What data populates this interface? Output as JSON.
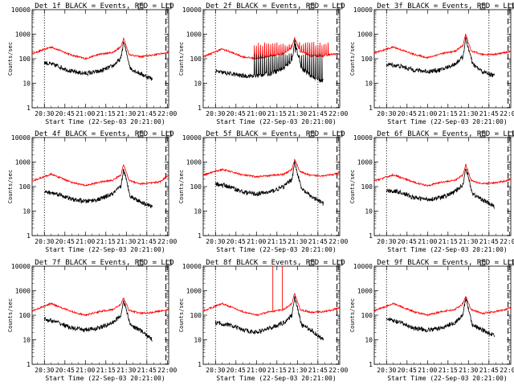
{
  "figure": {
    "ylabel": "Counts/sec",
    "xlabel": "Start Time (22-Sep-03 20:21:00)",
    "legend_title_suffix": "BLACK = Events, RED = LLD",
    "colors": {
      "events": "#000000",
      "lld": "#ff0000",
      "markers": "#000000"
    }
  },
  "chart_data": [
    {
      "type": "line",
      "detector": "Det 1f",
      "title": "Det 1f BLACK = Events, RED = LLD",
      "xlabel": "Start Time (22-Sep-03 20:21:00)",
      "ylabel": "Counts/sec",
      "yscale": "log",
      "ylim": [
        1,
        10000
      ],
      "xlim": [
        "20:21",
        "22:01"
      ],
      "xticks": [
        "20:30",
        "20:45",
        "21:00",
        "21:15",
        "21:30",
        "21:45",
        "22:00"
      ],
      "yticks": [
        "1",
        "10",
        "100",
        "1000",
        "10000"
      ],
      "vlines_dotted": [
        "20:30",
        "21:45"
      ],
      "vline_dashed": "21:59",
      "series": [
        {
          "name": "LLD",
          "x": [
            "20:21",
            "20:35",
            "20:50",
            "21:00",
            "21:10",
            "21:20",
            "21:26",
            "21:28",
            "21:32",
            "21:40",
            "21:49",
            "21:55",
            "22:01"
          ],
          "values": [
            160,
            300,
            140,
            100,
            150,
            180,
            300,
            700,
            150,
            120,
            140,
            160,
            180
          ]
        },
        {
          "name": "Events",
          "x": [
            "20:30",
            "20:40",
            "20:50",
            "21:00",
            "21:10",
            "21:20",
            "21:26",
            "21:28",
            "21:33",
            "21:40",
            "21:49"
          ],
          "values": [
            70,
            50,
            30,
            25,
            30,
            50,
            100,
            500,
            40,
            25,
            15
          ]
        }
      ]
    },
    {
      "type": "line",
      "detector": "Det 2f",
      "title": "Det 2f BLACK = Events, RED = LLD",
      "xlabel": "Start Time (22-Sep-03 20:21:00)",
      "ylabel": "Counts/sec",
      "yscale": "log",
      "ylim": [
        1,
        10000
      ],
      "xlim": [
        "20:21",
        "22:01"
      ],
      "xticks": [
        "20:30",
        "20:45",
        "21:00",
        "21:15",
        "21:30",
        "21:45",
        "22:00"
      ],
      "yticks": [
        "1",
        "10",
        "100",
        "1000",
        "10000"
      ],
      "vlines_dotted": [
        "20:30",
        "21:45"
      ],
      "vline_dashed": "21:59",
      "series": [
        {
          "name": "LLD",
          "x": [
            "20:21",
            "20:35",
            "20:50",
            "21:00",
            "21:10",
            "21:20",
            "21:26",
            "21:28",
            "21:32",
            "21:40",
            "21:49",
            "21:55",
            "22:01"
          ],
          "values": [
            120,
            250,
            120,
            100,
            130,
            160,
            300,
            700,
            200,
            130,
            130,
            150,
            160
          ],
          "spikes_to": 400
        },
        {
          "name": "Events",
          "x": [
            "20:30",
            "20:40",
            "20:50",
            "21:00",
            "21:10",
            "21:20",
            "21:26",
            "21:28",
            "21:33",
            "21:40",
            "21:49"
          ],
          "values": [
            30,
            25,
            20,
            20,
            25,
            40,
            90,
            500,
            40,
            20,
            12
          ],
          "spikes_to": 150
        }
      ]
    },
    {
      "type": "line",
      "detector": "Det 3f",
      "title": "Det 3f BLACK = Events, RED = LLD",
      "xlabel": "Start Time (22-Sep-03 20:21:00)",
      "ylabel": "Counts/sec",
      "yscale": "log",
      "ylim": [
        1,
        10000
      ],
      "xlim": [
        "20:21",
        "22:01"
      ],
      "xticks": [
        "20:30",
        "20:45",
        "21:00",
        "21:15",
        "21:30",
        "21:45",
        "22:00"
      ],
      "yticks": [
        "1",
        "10",
        "100",
        "1000",
        "10000"
      ],
      "vlines_dotted": [
        "20:30",
        "21:45"
      ],
      "vline_dashed": "21:59",
      "series": [
        {
          "name": "LLD",
          "x": [
            "20:21",
            "20:35",
            "20:50",
            "21:00",
            "21:10",
            "21:20",
            "21:26",
            "21:28",
            "21:32",
            "21:40",
            "21:49",
            "21:55",
            "22:01"
          ],
          "values": [
            170,
            300,
            150,
            110,
            160,
            200,
            350,
            1000,
            200,
            150,
            150,
            170,
            200
          ]
        },
        {
          "name": "Events",
          "x": [
            "20:30",
            "20:40",
            "20:50",
            "21:00",
            "21:10",
            "21:20",
            "21:26",
            "21:28",
            "21:33",
            "21:40",
            "21:49"
          ],
          "values": [
            60,
            50,
            35,
            30,
            35,
            60,
            120,
            700,
            60,
            30,
            20
          ]
        }
      ]
    },
    {
      "type": "line",
      "detector": "Det 4f",
      "title": "Det 4f BLACK = Events, RED = LLD",
      "xlabel": "Start Time (22-Sep-03 20:21:00)",
      "ylabel": "Counts/sec",
      "yscale": "log",
      "ylim": [
        1,
        10000
      ],
      "xlim": [
        "20:21",
        "22:01"
      ],
      "xticks": [
        "20:30",
        "20:45",
        "21:00",
        "21:15",
        "21:30",
        "21:45",
        "22:00"
      ],
      "yticks": [
        "1",
        "10",
        "100",
        "1000",
        "10000"
      ],
      "vlines_dotted": [
        "20:30",
        "21:45"
      ],
      "vline_dashed": "21:59",
      "series": [
        {
          "name": "LLD",
          "x": [
            "20:21",
            "20:35",
            "20:50",
            "21:00",
            "21:10",
            "21:20",
            "21:26",
            "21:28",
            "21:32",
            "21:40",
            "21:49",
            "21:55",
            "22:01"
          ],
          "values": [
            170,
            320,
            150,
            110,
            150,
            180,
            300,
            800,
            180,
            130,
            140,
            160,
            300
          ]
        },
        {
          "name": "Events",
          "x": [
            "20:30",
            "20:40",
            "20:50",
            "21:00",
            "21:10",
            "21:20",
            "21:26",
            "21:28",
            "21:33",
            "21:40",
            "21:49"
          ],
          "values": [
            60,
            50,
            30,
            25,
            30,
            50,
            100,
            500,
            40,
            25,
            15
          ]
        }
      ]
    },
    {
      "type": "line",
      "detector": "Det 5f",
      "title": "Det 5f BLACK = Events, RED = LLD",
      "xlabel": "Start Time (22-Sep-03 20:21:00)",
      "ylabel": "Counts/sec",
      "yscale": "log",
      "ylim": [
        1,
        10000
      ],
      "xlim": [
        "20:21",
        "22:01"
      ],
      "xticks": [
        "20:30",
        "20:45",
        "21:00",
        "21:15",
        "21:30",
        "21:45",
        "22:00"
      ],
      "yticks": [
        "1",
        "10",
        "100",
        "1000",
        "10000"
      ],
      "vlines_dotted": [
        "20:30",
        "21:45"
      ],
      "vline_dashed": "21:59",
      "series": [
        {
          "name": "LLD",
          "x": [
            "20:21",
            "20:35",
            "20:50",
            "21:00",
            "21:10",
            "21:20",
            "21:26",
            "21:28",
            "21:32",
            "21:40",
            "21:49",
            "21:55",
            "22:01"
          ],
          "values": [
            300,
            500,
            300,
            250,
            280,
            320,
            500,
            1300,
            400,
            280,
            280,
            300,
            350
          ]
        },
        {
          "name": "Events",
          "x": [
            "20:30",
            "20:40",
            "20:50",
            "21:00",
            "21:10",
            "21:20",
            "21:26",
            "21:28",
            "21:33",
            "21:40",
            "21:49"
          ],
          "values": [
            130,
            100,
            60,
            50,
            60,
            100,
            200,
            1000,
            80,
            40,
            20
          ]
        }
      ]
    },
    {
      "type": "line",
      "detector": "Det 6f",
      "title": "Det 6f BLACK = Events, RED = LLD",
      "xlabel": "Start Time (22-Sep-03 20:21:00)",
      "ylabel": "Counts/sec",
      "yscale": "log",
      "ylim": [
        1,
        10000
      ],
      "xlim": [
        "20:21",
        "22:01"
      ],
      "xticks": [
        "20:30",
        "20:45",
        "21:00",
        "21:15",
        "21:30",
        "21:45",
        "22:00"
      ],
      "yticks": [
        "1",
        "10",
        "100",
        "1000",
        "10000"
      ],
      "vlines_dotted": [
        "20:30",
        "21:45"
      ],
      "vline_dashed": "21:59",
      "series": [
        {
          "name": "LLD",
          "x": [
            "20:21",
            "20:35",
            "20:50",
            "21:00",
            "21:10",
            "21:20",
            "21:26",
            "21:28",
            "21:32",
            "21:40",
            "21:49",
            "21:55",
            "22:01"
          ],
          "values": [
            170,
            300,
            150,
            110,
            150,
            180,
            300,
            800,
            180,
            130,
            140,
            160,
            200
          ]
        },
        {
          "name": "Events",
          "x": [
            "20:30",
            "20:40",
            "20:50",
            "21:00",
            "21:10",
            "21:20",
            "21:26",
            "21:28",
            "21:33",
            "21:40",
            "21:49"
          ],
          "values": [
            70,
            60,
            35,
            30,
            35,
            60,
            120,
            600,
            50,
            30,
            15
          ]
        }
      ]
    },
    {
      "type": "line",
      "detector": "Det 7f",
      "title": "Det 7f BLACK = Events, RED = LLD",
      "xlabel": "Start Time (22-Sep-03 20:21:00)",
      "ylabel": "Counts/sec",
      "yscale": "log",
      "ylim": [
        1,
        10000
      ],
      "xlim": [
        "20:21",
        "22:01"
      ],
      "xticks": [
        "20:30",
        "20:45",
        "21:00",
        "21:15",
        "21:30",
        "21:45",
        "22:00"
      ],
      "yticks": [
        "1",
        "10",
        "100",
        "1000",
        "10000"
      ],
      "vlines_dotted": [
        "20:30",
        "21:45"
      ],
      "vline_dashed": "21:59",
      "series": [
        {
          "name": "LLD",
          "x": [
            "20:21",
            "20:35",
            "20:50",
            "21:00",
            "21:10",
            "21:20",
            "21:26",
            "21:28",
            "21:32",
            "21:40",
            "21:49",
            "21:55",
            "22:01"
          ],
          "values": [
            150,
            300,
            140,
            100,
            140,
            170,
            280,
            500,
            160,
            120,
            130,
            150,
            170
          ]
        },
        {
          "name": "Events",
          "x": [
            "20:30",
            "20:40",
            "20:50",
            "21:00",
            "21:10",
            "21:20",
            "21:26",
            "21:28",
            "21:33",
            "21:40",
            "21:49"
          ],
          "values": [
            70,
            50,
            30,
            25,
            30,
            50,
            100,
            400,
            40,
            25,
            10
          ]
        }
      ]
    },
    {
      "type": "line",
      "detector": "Det 8f",
      "title": "Det 8f BLACK = Events, RED = LLD",
      "xlabel": "Start Time (22-Sep-03 20:21:00)",
      "ylabel": "Counts/sec",
      "yscale": "log",
      "ylim": [
        1,
        10000
      ],
      "xlim": [
        "20:21",
        "22:01"
      ],
      "xticks": [
        "20:30",
        "20:45",
        "21:00",
        "21:15",
        "21:30",
        "21:45",
        "22:00"
      ],
      "yticks": [
        "1",
        "10",
        "100",
        "1000",
        "10000"
      ],
      "vlines_dotted": [
        "20:30",
        "21:45"
      ],
      "vline_dashed": "21:59",
      "series": [
        {
          "name": "LLD",
          "x": [
            "20:21",
            "20:35",
            "20:50",
            "21:00",
            "21:10",
            "21:20",
            "21:26",
            "21:28",
            "21:32",
            "21:40",
            "21:49",
            "21:55",
            "22:01"
          ],
          "values": [
            150,
            300,
            140,
            100,
            140,
            170,
            300,
            800,
            170,
            130,
            140,
            160,
            200
          ],
          "spike_events": [
            {
              "x": "21:12",
              "value": 10000
            },
            {
              "x": "21:19",
              "value": 10000
            }
          ]
        },
        {
          "name": "Events",
          "x": [
            "20:30",
            "20:40",
            "20:50",
            "21:00",
            "21:10",
            "21:20",
            "21:26",
            "21:28",
            "21:33",
            "21:40",
            "21:49"
          ],
          "values": [
            50,
            40,
            25,
            20,
            30,
            50,
            100,
            600,
            40,
            25,
            10
          ]
        }
      ]
    },
    {
      "type": "line",
      "detector": "Det 9f",
      "title": "Det 9f BLACK = Events, RED = LLD",
      "xlabel": "Start Time (22-Sep-03 20:21:00)",
      "ylabel": "Counts/sec",
      "yscale": "log",
      "ylim": [
        1,
        10000
      ],
      "xlim": [
        "20:21",
        "22:01"
      ],
      "xticks": [
        "20:30",
        "20:45",
        "21:00",
        "21:15",
        "21:30",
        "21:45",
        "22:00"
      ],
      "yticks": [
        "1",
        "10",
        "100",
        "1000",
        "10000"
      ],
      "vlines_dotted": [
        "20:30",
        "21:45"
      ],
      "vline_dashed": "21:59",
      "series": [
        {
          "name": "LLD",
          "x": [
            "20:21",
            "20:35",
            "20:50",
            "21:00",
            "21:10",
            "21:20",
            "21:26",
            "21:28",
            "21:32",
            "21:40",
            "21:49",
            "21:55",
            "22:01"
          ],
          "values": [
            150,
            300,
            140,
            100,
            140,
            170,
            300,
            600,
            170,
            120,
            140,
            160,
            200
          ]
        },
        {
          "name": "Events",
          "x": [
            "20:30",
            "20:40",
            "20:50",
            "21:00",
            "21:10",
            "21:20",
            "21:26",
            "21:28",
            "21:33",
            "21:40",
            "21:49"
          ],
          "values": [
            70,
            50,
            30,
            25,
            30,
            50,
            100,
            500,
            40,
            25,
            15
          ]
        }
      ]
    }
  ]
}
